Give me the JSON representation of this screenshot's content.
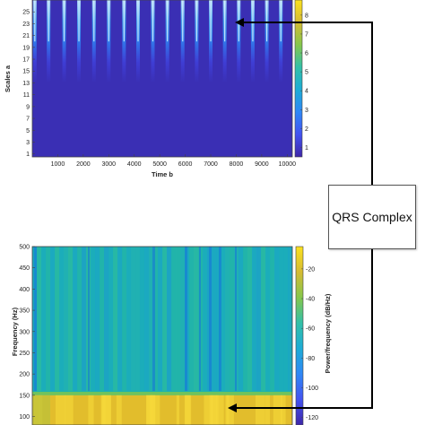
{
  "chart_data": [
    {
      "type": "heatmap",
      "xlabel": "Time b",
      "ylabel": "Scales a",
      "x_ticks": [
        1000,
        2000,
        3000,
        4000,
        5000,
        6000,
        7000,
        8000,
        9000,
        10000
      ],
      "y_ticks": [
        1,
        3,
        5,
        7,
        9,
        11,
        13,
        15,
        17,
        19,
        21,
        23,
        25
      ],
      "xlim": [
        0,
        10200
      ],
      "ylim": [
        0.5,
        27
      ],
      "colorbar_ticks": [
        1,
        2,
        3,
        4,
        5,
        6,
        7,
        8
      ],
      "colorbar_range": [
        0.5,
        8.8
      ],
      "stripe_positions": [
        100,
        640,
        1250,
        1830,
        2420,
        3000,
        3600,
        4150,
        4730,
        5300,
        5900,
        6450,
        7000,
        7550,
        8100,
        8650,
        9200,
        9750
      ],
      "colormap": [
        "#3e26a8",
        "#4353f0",
        "#2f87f6",
        "#1dacd6",
        "#32c0a8",
        "#85c74c",
        "#d5bb32",
        "#fbe11e"
      ]
    },
    {
      "type": "heatmap",
      "xlabel": "",
      "ylabel": "Frequency (Hz)",
      "y_ticks": [
        100,
        150,
        200,
        250,
        300,
        350,
        400,
        450,
        500
      ],
      "ylim": [
        80,
        500
      ],
      "colorbar_label": "Power/frequency (dB/Hz)",
      "colorbar_ticks": [
        -20,
        -40,
        -60,
        -80,
        -100,
        -120
      ],
      "colorbar_range": [
        -125,
        -5
      ],
      "colormap": [
        "#3e26a8",
        "#4353f0",
        "#2f87f6",
        "#1dacd6",
        "#32c0a8",
        "#85c74c",
        "#d5bb32",
        "#fbe11e"
      ]
    }
  ],
  "callout": {
    "label": "QRS Complex",
    "line_color": "#000000"
  }
}
